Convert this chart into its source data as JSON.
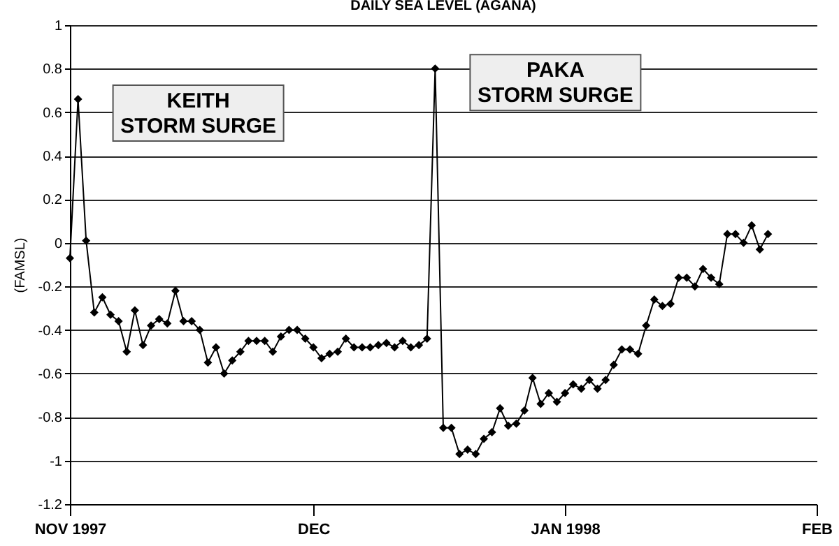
{
  "chart_data": {
    "type": "line",
    "title": "DAILY SEA LEVEL (AGANA)",
    "ylabel": "(FAMSL)",
    "x": [
      "1997-11-01",
      "1997-11-02",
      "1997-11-03",
      "1997-11-04",
      "1997-11-05",
      "1997-11-06",
      "1997-11-07",
      "1997-11-08",
      "1997-11-09",
      "1997-11-10",
      "1997-11-11",
      "1997-11-12",
      "1997-11-13",
      "1997-11-14",
      "1997-11-15",
      "1997-11-16",
      "1997-11-17",
      "1997-11-18",
      "1997-11-19",
      "1997-11-20",
      "1997-11-21",
      "1997-11-22",
      "1997-11-23",
      "1997-11-24",
      "1997-11-25",
      "1997-11-26",
      "1997-11-27",
      "1997-11-28",
      "1997-11-29",
      "1997-11-30",
      "1997-12-01",
      "1997-12-02",
      "1997-12-03",
      "1997-12-04",
      "1997-12-05",
      "1997-12-06",
      "1997-12-07",
      "1997-12-08",
      "1997-12-09",
      "1997-12-10",
      "1997-12-11",
      "1997-12-12",
      "1997-12-13",
      "1997-12-14",
      "1997-12-15",
      "1997-12-16",
      "1997-12-17",
      "1997-12-18",
      "1997-12-19",
      "1997-12-20",
      "1997-12-21",
      "1997-12-22",
      "1997-12-23",
      "1997-12-24",
      "1997-12-25",
      "1997-12-26",
      "1997-12-27",
      "1997-12-28",
      "1997-12-29",
      "1997-12-30",
      "1997-12-31",
      "1998-01-01",
      "1998-01-02",
      "1998-01-03",
      "1998-01-04",
      "1998-01-05",
      "1998-01-06",
      "1998-01-07",
      "1998-01-08",
      "1998-01-09",
      "1998-01-10",
      "1998-01-11",
      "1998-01-12",
      "1998-01-13",
      "1998-01-14",
      "1998-01-15",
      "1998-01-16",
      "1998-01-17",
      "1998-01-18",
      "1998-01-19",
      "1998-01-20",
      "1998-01-21",
      "1998-01-22",
      "1998-01-23",
      "1998-01-24",
      "1998-01-25",
      "1998-01-26"
    ],
    "series": [
      {
        "color": "#000000",
        "values": [
          -0.07,
          0.66,
          0.01,
          -0.32,
          -0.25,
          -0.33,
          -0.36,
          -0.5,
          -0.31,
          -0.47,
          -0.38,
          -0.35,
          -0.37,
          -0.22,
          -0.36,
          -0.36,
          -0.4,
          -0.55,
          -0.48,
          -0.6,
          -0.54,
          -0.5,
          -0.45,
          -0.45,
          -0.45,
          -0.5,
          -0.43,
          -0.4,
          -0.4,
          -0.44,
          -0.48,
          -0.53,
          -0.51,
          -0.5,
          -0.44,
          -0.48,
          -0.48,
          -0.48,
          -0.47,
          -0.46,
          -0.48,
          -0.45,
          -0.48,
          -0.47,
          -0.44,
          0.8,
          -0.85,
          -0.85,
          -0.97,
          -0.95,
          -0.97,
          -0.9,
          -0.87,
          -0.76,
          -0.84,
          -0.83,
          -0.77,
          -0.62,
          -0.74,
          -0.69,
          -0.73,
          -0.69,
          -0.65,
          -0.67,
          -0.63,
          -0.67,
          -0.63,
          -0.56,
          -0.49,
          -0.49,
          -0.51,
          -0.38,
          -0.26,
          -0.29,
          -0.28,
          -0.16,
          -0.16,
          -0.2,
          -0.12,
          -0.16,
          -0.19,
          0.04,
          0.04,
          0.0,
          0.08,
          -0.03,
          0.04
        ]
      }
    ],
    "xlim": [
      "1997-11-01",
      "1998-02-01"
    ],
    "xticks": [
      {
        "value": "1997-11-01",
        "label": "NOV 1997"
      },
      {
        "value": "1997-12-01",
        "label": "DEC"
      },
      {
        "value": "1998-01-01",
        "label": "JAN 1998"
      },
      {
        "value": "1998-02-01",
        "label": "FEB"
      }
    ],
    "ylim": [
      -1.2,
      1
    ],
    "yticks": [
      -1.2,
      -1,
      -0.8,
      -0.6,
      -0.4,
      -0.2,
      0,
      0.2,
      0.4,
      0.6,
      0.8,
      1
    ],
    "grid": "y",
    "marker": "diamond",
    "line_style": "solid",
    "legend": false,
    "annotations": [
      {
        "text": "KEITH\nSTORM SURGE",
        "x": "1997-11-02",
        "y": 0.66
      },
      {
        "text": "PAKA\nSTORM SURGE",
        "x": "1997-12-16",
        "y": 0.8
      }
    ]
  }
}
